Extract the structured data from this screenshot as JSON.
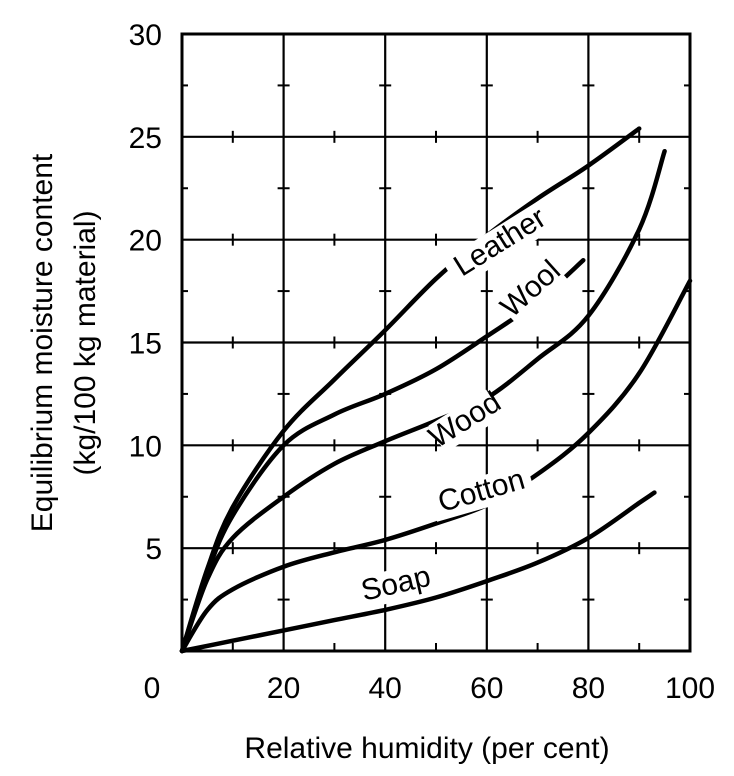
{
  "chart_data": {
    "type": "line",
    "xlabel": "Relative humidity (per cent)",
    "ylabel_line1": "Equilibrium moisture content",
    "ylabel_line2": "(kg/100 kg material)",
    "xlim": [
      0,
      100
    ],
    "ylim": [
      0,
      30
    ],
    "x_ticks": [
      "0",
      "20",
      "40",
      "60",
      "80",
      "100"
    ],
    "y_ticks": [
      "5",
      "10",
      "15",
      "20",
      "25",
      "30"
    ],
    "grid": true,
    "series": [
      {
        "name": "Leather",
        "label_angle": -32,
        "points": [
          [
            0,
            0
          ],
          [
            5,
            4
          ],
          [
            10,
            7
          ],
          [
            20,
            10.7
          ],
          [
            30,
            13.2
          ],
          [
            40,
            15.6
          ],
          [
            50,
            18.1
          ],
          [
            60,
            20.2
          ],
          [
            70,
            22
          ],
          [
            80,
            23.6
          ],
          [
            90,
            25.4
          ]
        ]
      },
      {
        "name": "Wool",
        "label_angle": -42,
        "points": [
          [
            0,
            0
          ],
          [
            5,
            3.8
          ],
          [
            10,
            6.6
          ],
          [
            20,
            10
          ],
          [
            30,
            11.5
          ],
          [
            40,
            12.5
          ],
          [
            50,
            13.7
          ],
          [
            60,
            15.3
          ],
          [
            70,
            17
          ],
          [
            79,
            19
          ]
        ]
      },
      {
        "name": "Wood",
        "label_angle": -32,
        "points": [
          [
            0,
            0
          ],
          [
            5,
            3.5
          ],
          [
            10,
            5.5
          ],
          [
            20,
            7.5
          ],
          [
            30,
            9.1
          ],
          [
            40,
            10.2
          ],
          [
            50,
            11.2
          ],
          [
            60,
            12.3
          ],
          [
            70,
            14.2
          ],
          [
            80,
            16.3
          ],
          [
            90,
            20.5
          ],
          [
            95,
            24.3
          ]
        ]
      },
      {
        "name": "Cotton",
        "label_angle": -16,
        "points": [
          [
            0,
            0
          ],
          [
            5,
            2
          ],
          [
            10,
            3
          ],
          [
            20,
            4.1
          ],
          [
            30,
            4.8
          ],
          [
            40,
            5.4
          ],
          [
            50,
            6.2
          ],
          [
            60,
            7.1
          ],
          [
            70,
            8.6
          ],
          [
            80,
            10.6
          ],
          [
            90,
            13.5
          ],
          [
            100,
            18
          ]
        ]
      },
      {
        "name": "Soap",
        "label_angle": -13,
        "points": [
          [
            0,
            0
          ],
          [
            10,
            0.5
          ],
          [
            20,
            1
          ],
          [
            30,
            1.5
          ],
          [
            40,
            2
          ],
          [
            50,
            2.6
          ],
          [
            60,
            3.4
          ],
          [
            70,
            4.3
          ],
          [
            80,
            5.5
          ],
          [
            90,
            7.2
          ],
          [
            93,
            7.7
          ]
        ]
      }
    ]
  }
}
